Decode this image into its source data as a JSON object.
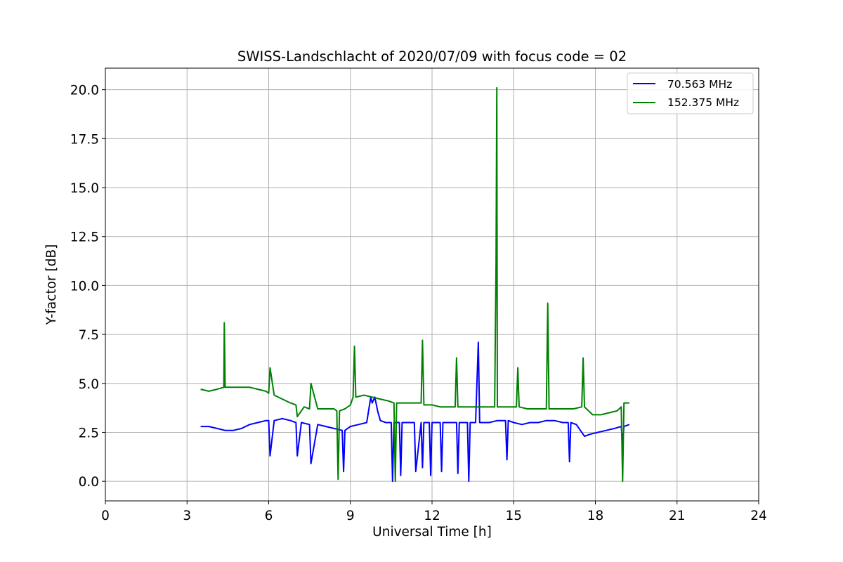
{
  "chart_data": {
    "type": "line",
    "title": "SWISS-Landschlacht of 2020/07/09 with focus code = 02",
    "xlabel": "Universal Time [h]",
    "ylabel": "Y-factor [dB]",
    "xlim": [
      0,
      24
    ],
    "ylim": [
      -1.0,
      21.1
    ],
    "xticks": [
      0,
      3,
      6,
      9,
      12,
      15,
      18,
      21,
      24
    ],
    "xtick_labels": [
      "0",
      "3",
      "6",
      "9",
      "12",
      "15",
      "18",
      "21",
      "24"
    ],
    "yticks": [
      0.0,
      2.5,
      5.0,
      7.5,
      10.0,
      12.5,
      15.0,
      17.5,
      20.0
    ],
    "ytick_labels": [
      "0.0",
      "2.5",
      "5.0",
      "7.5",
      "10.0",
      "12.5",
      "15.0",
      "17.5",
      "20.0"
    ],
    "grid": true,
    "legend_position": "top-right",
    "series": [
      {
        "name": " 70.563 MHz",
        "color": "#0000ff",
        "x": [
          3.5,
          3.8,
          4.1,
          4.4,
          4.7,
          5.0,
          5.3,
          5.6,
          5.9,
          6.0,
          6.05,
          6.2,
          6.5,
          6.8,
          7.0,
          7.05,
          7.2,
          7.5,
          7.55,
          7.8,
          8.1,
          8.4,
          8.7,
          8.75,
          8.8,
          9.0,
          9.3,
          9.6,
          9.75,
          9.8,
          9.9,
          10.0,
          10.1,
          10.3,
          10.5,
          10.55,
          10.6,
          10.8,
          10.85,
          10.9,
          11.1,
          11.35,
          11.4,
          11.6,
          11.65,
          11.7,
          11.9,
          11.95,
          12.0,
          12.3,
          12.35,
          12.4,
          12.6,
          12.9,
          12.95,
          13.0,
          13.3,
          13.35,
          13.4,
          13.6,
          13.7,
          13.75,
          13.9,
          14.1,
          14.4,
          14.7,
          14.75,
          14.8,
          15.0,
          15.3,
          15.6,
          15.9,
          16.2,
          16.5,
          16.8,
          17.0,
          17.05,
          17.1,
          17.3,
          17.5,
          17.6,
          17.8,
          18.1,
          18.4,
          18.7,
          18.95,
          19.0,
          19.05,
          19.25
        ],
        "y": [
          2.8,
          2.8,
          2.7,
          2.6,
          2.6,
          2.7,
          2.9,
          3.0,
          3.1,
          3.1,
          1.3,
          3.1,
          3.2,
          3.1,
          3.0,
          1.3,
          3.0,
          2.9,
          0.9,
          2.9,
          2.8,
          2.7,
          2.6,
          0.5,
          2.6,
          2.8,
          2.9,
          3.0,
          4.3,
          4.0,
          4.3,
          3.6,
          3.1,
          3.0,
          3.0,
          0.0,
          3.0,
          3.0,
          0.3,
          3.0,
          3.0,
          3.0,
          0.5,
          3.0,
          0.7,
          3.0,
          3.0,
          0.3,
          3.0,
          3.0,
          0.5,
          3.0,
          3.0,
          3.0,
          0.4,
          3.0,
          3.0,
          0.0,
          3.0,
          3.0,
          7.1,
          3.0,
          3.0,
          3.0,
          3.1,
          3.1,
          1.1,
          3.1,
          3.0,
          2.9,
          3.0,
          3.0,
          3.1,
          3.1,
          3.0,
          3.0,
          1.0,
          3.0,
          2.9,
          2.5,
          2.3,
          2.4,
          2.5,
          2.6,
          2.7,
          2.8,
          2.0,
          2.8,
          2.9
        ]
      },
      {
        "name": "152.375 MHz",
        "color": "#008000",
        "x": [
          3.5,
          3.8,
          4.1,
          4.35,
          4.37,
          4.4,
          4.7,
          5.0,
          5.3,
          5.6,
          5.9,
          6.0,
          6.05,
          6.2,
          6.5,
          6.8,
          7.0,
          7.05,
          7.3,
          7.5,
          7.55,
          7.8,
          8.1,
          8.4,
          8.5,
          8.55,
          8.6,
          8.8,
          9.0,
          9.1,
          9.15,
          9.2,
          9.5,
          9.8,
          10.1,
          10.4,
          10.6,
          10.65,
          10.7,
          11.0,
          11.3,
          11.6,
          11.65,
          11.7,
          12.0,
          12.3,
          12.6,
          12.85,
          12.9,
          12.95,
          13.2,
          13.5,
          13.8,
          14.1,
          14.3,
          14.35,
          14.38,
          14.4,
          14.7,
          15.0,
          15.1,
          15.15,
          15.2,
          15.5,
          15.8,
          16.1,
          16.2,
          16.25,
          16.3,
          16.6,
          16.9,
          17.2,
          17.5,
          17.55,
          17.6,
          17.9,
          18.2,
          18.5,
          18.8,
          18.95,
          19.0,
          19.05,
          19.25
        ],
        "y": [
          4.7,
          4.6,
          4.7,
          4.8,
          8.1,
          4.8,
          4.8,
          4.8,
          4.8,
          4.7,
          4.6,
          4.5,
          5.8,
          4.4,
          4.2,
          4.0,
          3.9,
          3.3,
          3.8,
          3.7,
          5.0,
          3.7,
          3.7,
          3.7,
          3.6,
          0.1,
          3.6,
          3.7,
          3.9,
          4.3,
          6.9,
          4.3,
          4.4,
          4.3,
          4.2,
          4.1,
          4.0,
          0.0,
          4.0,
          4.0,
          4.0,
          4.0,
          7.2,
          3.9,
          3.9,
          3.8,
          3.8,
          3.8,
          6.3,
          3.8,
          3.8,
          3.8,
          3.8,
          3.8,
          3.8,
          11.0,
          20.1,
          3.8,
          3.8,
          3.8,
          3.8,
          5.8,
          3.8,
          3.7,
          3.7,
          3.7,
          3.7,
          9.1,
          3.7,
          3.7,
          3.7,
          3.7,
          3.8,
          6.3,
          3.8,
          3.4,
          3.4,
          3.5,
          3.6,
          3.8,
          0.0,
          4.0,
          4.0
        ]
      }
    ]
  }
}
